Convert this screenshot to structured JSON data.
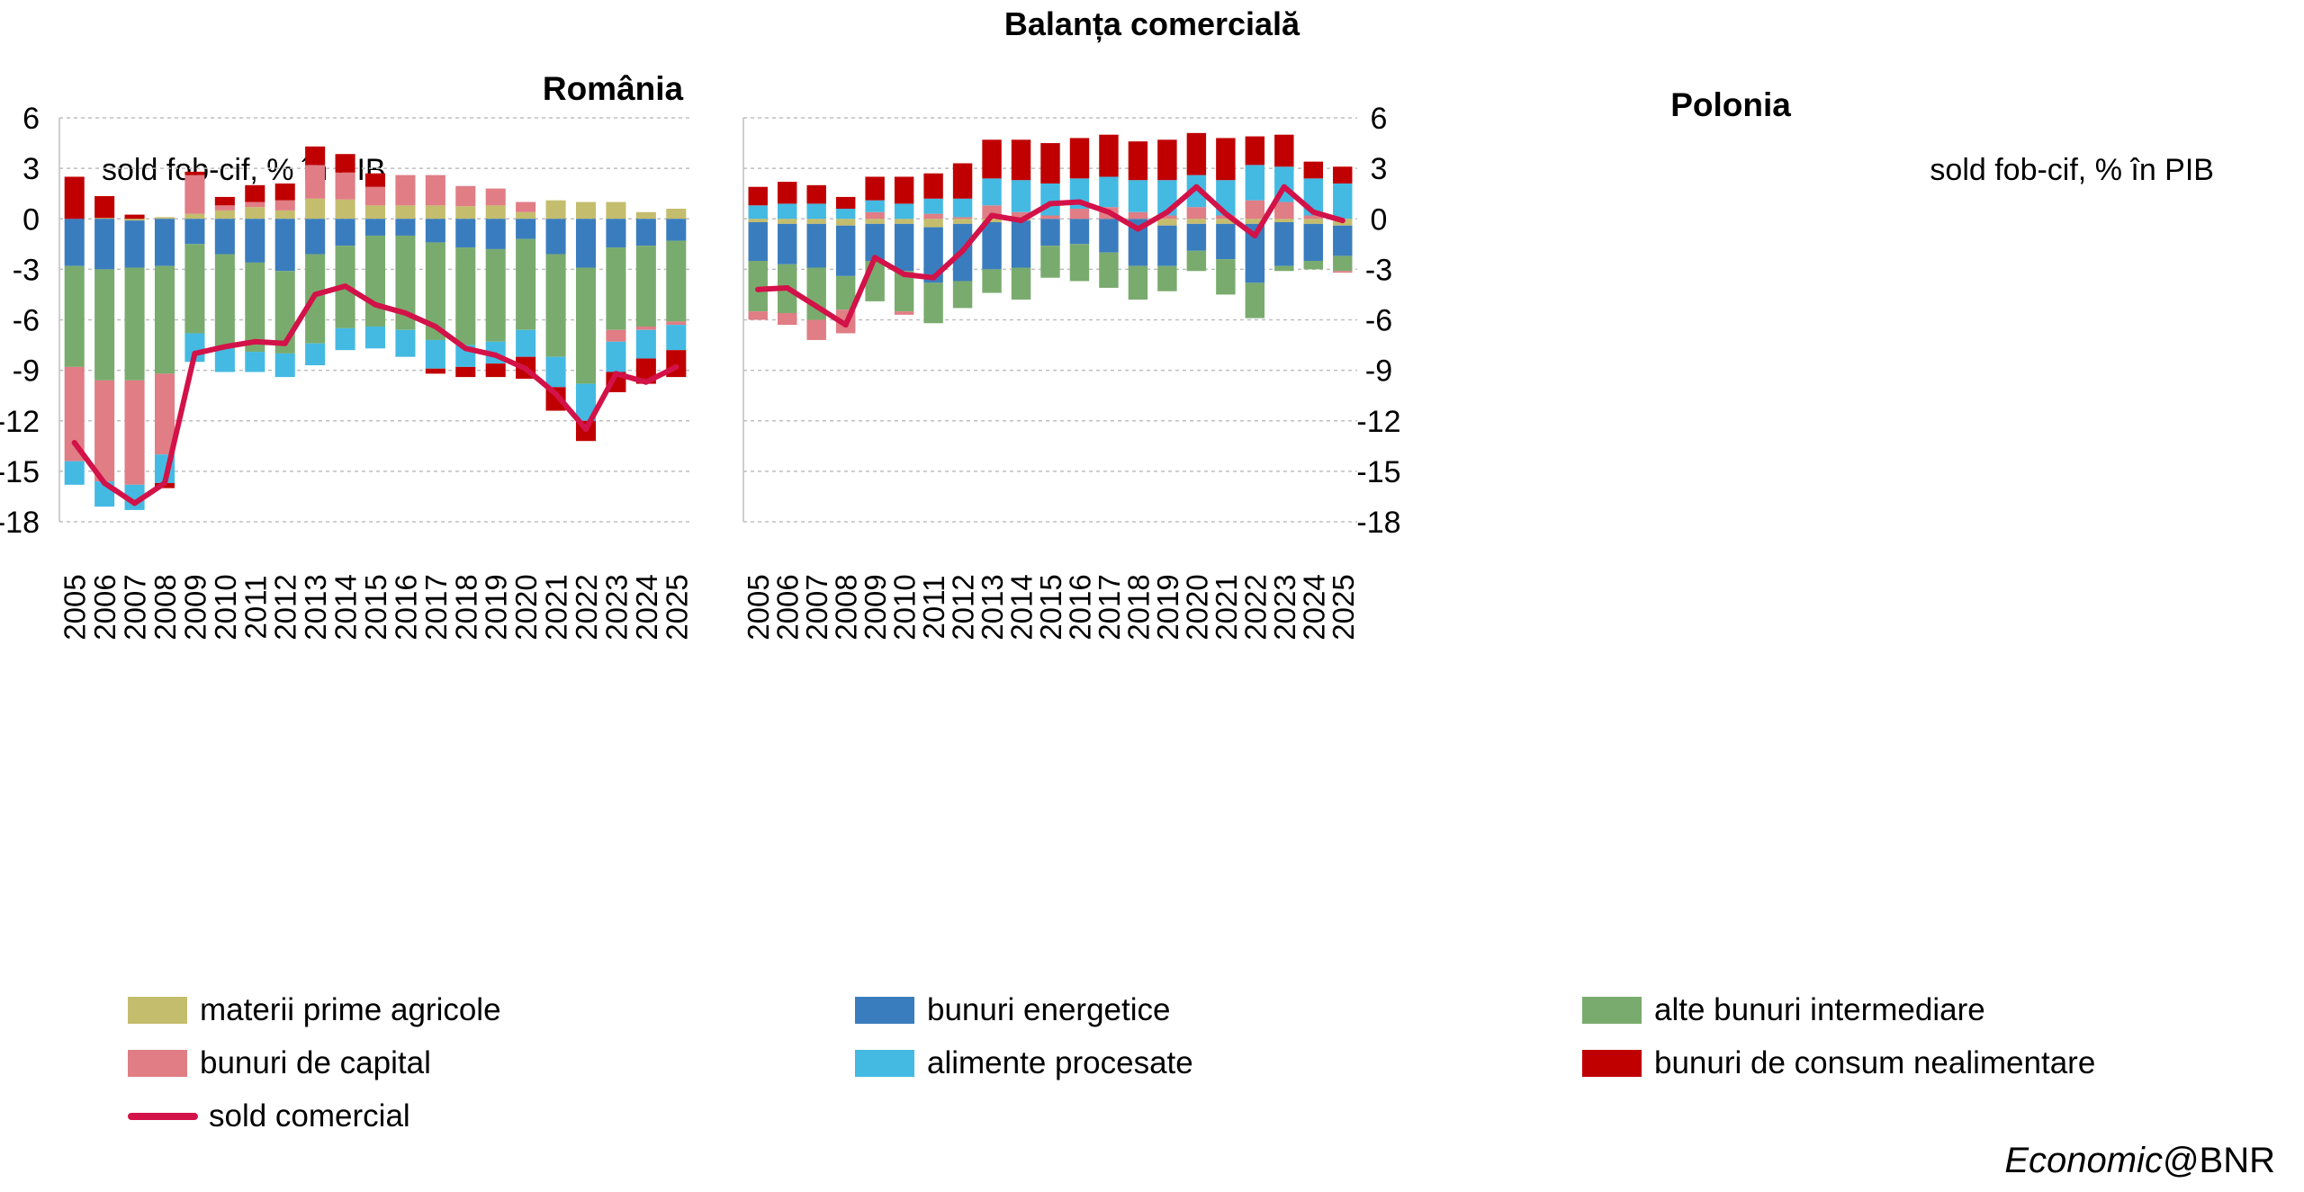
{
  "title": "Balanța comercială",
  "credit": {
    "italic": "Economic",
    "plain": "@BNR"
  },
  "colors": {
    "materii_prime_agricole": "#c4bd6d",
    "bunuri_energetice": "#3a7dbe",
    "alte_bunuri_intermediare": "#7aab6e",
    "bunuri_de_capital": "#e07d85",
    "alimente_procesate": "#44bae3",
    "bunuri_de_consum_nealimentare": "#c00000",
    "sold_comercial": "#d21248",
    "grid": "#bfbfbf"
  },
  "legend": [
    {
      "key": "materii_prime_agricole",
      "label": "materii prime agricole",
      "kind": "bar"
    },
    {
      "key": "bunuri_energetice",
      "label": "bunuri energetice",
      "kind": "bar"
    },
    {
      "key": "alte_bunuri_intermediare",
      "label": "alte bunuri intermediare",
      "kind": "bar"
    },
    {
      "key": "bunuri_de_capital",
      "label": "bunuri de capital",
      "kind": "bar"
    },
    {
      "key": "alimente_procesate",
      "label": "alimente procesate",
      "kind": "bar"
    },
    {
      "key": "bunuri_de_consum_nealimentare",
      "label": "bunuri de consum nealimentare",
      "kind": "bar"
    },
    {
      "key": "sold_comercial",
      "label": "sold comercial",
      "kind": "line"
    }
  ],
  "chart_data": [
    {
      "type": "bar",
      "stacked": true,
      "title": "România",
      "ylabel": "sold fob-cif, % în PIB",
      "y_axis_side": "left",
      "ylim": [
        -18,
        6
      ],
      "yticks": [
        6,
        3,
        0,
        -3,
        -6,
        -9,
        -12,
        -15,
        -18
      ],
      "grid": true,
      "categories": [
        "2005",
        "2006",
        "2007",
        "2008",
        "2009",
        "2010",
        "2011",
        "2012",
        "2013",
        "2014",
        "2015",
        "2016",
        "2017",
        "2018",
        "2019",
        "2020",
        "2021",
        "2022",
        "2023",
        "2024",
        "2025"
      ],
      "series": [
        {
          "key": "materii_prime_agricole",
          "name": "materii prime agricole",
          "values": [
            0.0,
            0.05,
            -0.1,
            0.1,
            0.3,
            0.5,
            0.7,
            0.5,
            1.2,
            1.15,
            0.8,
            0.8,
            0.8,
            0.75,
            0.8,
            0.4,
            1.1,
            1.0,
            1.0,
            0.4,
            0.6
          ]
        },
        {
          "key": "bunuri_energetice",
          "name": "bunuri energetice",
          "values": [
            -2.8,
            -3.0,
            -2.8,
            -2.8,
            -1.5,
            -2.1,
            -2.6,
            -3.1,
            -2.1,
            -1.6,
            -1.0,
            -1.0,
            -1.4,
            -1.7,
            -1.8,
            -1.2,
            -2.1,
            -2.9,
            -1.7,
            -1.6,
            -1.3
          ]
        },
        {
          "key": "alte_bunuri_intermediare",
          "name": "alte bunuri intermediare",
          "values": [
            -6.0,
            -6.6,
            -6.7,
            -6.4,
            -5.3,
            -5.6,
            -5.3,
            -4.9,
            -5.3,
            -4.9,
            -5.4,
            -5.6,
            -5.8,
            -5.8,
            -5.5,
            -5.4,
            -6.1,
            -6.9,
            -4.9,
            -4.8,
            -4.8
          ]
        },
        {
          "key": "bunuri_de_capital",
          "name": "bunuri de capital",
          "values": [
            -5.6,
            -6.0,
            -6.2,
            -4.8,
            2.3,
            0.3,
            0.3,
            0.6,
            2.0,
            1.6,
            1.1,
            1.8,
            1.8,
            1.2,
            1.0,
            0.6,
            0.0,
            0.0,
            -0.7,
            -0.2,
            -0.2
          ]
        },
        {
          "key": "alimente_procesate",
          "name": "alimente procesate",
          "values": [
            -1.4,
            -1.5,
            -1.5,
            -1.7,
            -1.7,
            -1.4,
            -1.2,
            -1.4,
            -1.3,
            -1.3,
            -1.3,
            -1.6,
            -1.7,
            -1.3,
            -1.3,
            -1.6,
            -1.8,
            -2.2,
            -1.8,
            -1.7,
            -1.5
          ]
        },
        {
          "key": "bunuri_de_consum_nealimentare",
          "name": "bunuri de consum nealimentare",
          "values": [
            2.5,
            1.3,
            0.25,
            -0.3,
            0.2,
            0.5,
            1.0,
            1.0,
            1.1,
            1.1,
            0.8,
            0.0,
            -0.3,
            -0.6,
            -0.8,
            -1.3,
            -1.4,
            -1.2,
            -1.2,
            -1.5,
            -1.6
          ]
        }
      ],
      "line": {
        "key": "sold_comercial",
        "name": "sold comercial",
        "values": [
          -13.3,
          -15.7,
          -16.9,
          -15.7,
          -8.0,
          -7.6,
          -7.3,
          -7.4,
          -4.5,
          -4.0,
          -5.1,
          -5.6,
          -6.4,
          -7.7,
          -8.1,
          -8.9,
          -10.4,
          -12.5,
          -9.2,
          -9.7,
          -8.8
        ]
      }
    },
    {
      "type": "bar",
      "stacked": true,
      "title": "Polonia",
      "ylabel": "sold fob-cif, % în PIB",
      "y_axis_side": "right",
      "ylim": [
        -18,
        6
      ],
      "yticks": [
        6,
        3,
        0,
        -3,
        -6,
        -9,
        -12,
        -15,
        -18
      ],
      "grid": true,
      "categories": [
        "2005",
        "2006",
        "2007",
        "2008",
        "2009",
        "2010",
        "2011",
        "2012",
        "2013",
        "2014",
        "2015",
        "2016",
        "2017",
        "2018",
        "2019",
        "2020",
        "2021",
        "2022",
        "2023",
        "2024",
        "2025"
      ],
      "series": [
        {
          "key": "materii_prime_agricole",
          "name": "materii prime agricole",
          "values": [
            -0.2,
            -0.3,
            -0.3,
            -0.4,
            -0.3,
            -0.3,
            -0.5,
            -0.3,
            -0.2,
            -0.1,
            0.0,
            0.0,
            0.0,
            0.0,
            -0.4,
            -0.3,
            -0.3,
            -0.3,
            -0.2,
            -0.3,
            -0.4
          ]
        },
        {
          "key": "bunuri_energetice",
          "name": "bunuri energetice",
          "values": [
            -2.3,
            -2.4,
            -2.6,
            -3.0,
            -2.2,
            -2.8,
            -3.3,
            -3.4,
            -2.8,
            -2.8,
            -1.6,
            -1.5,
            -2.0,
            -2.8,
            -2.4,
            -1.6,
            -2.1,
            -3.5,
            -2.6,
            -2.2,
            -1.8
          ]
        },
        {
          "key": "alte_bunuri_intermediare",
          "name": "alte bunuri intermediare",
          "values": [
            -3.0,
            -2.9,
            -3.1,
            -2.0,
            -2.4,
            -2.4,
            -2.4,
            -1.6,
            -1.4,
            -1.9,
            -1.9,
            -2.2,
            -2.1,
            -2.0,
            -1.5,
            -1.2,
            -2.1,
            -2.1,
            -0.3,
            -0.5,
            -0.9
          ]
        },
        {
          "key": "bunuri_de_capital",
          "name": "bunuri de capital",
          "values": [
            -0.5,
            -0.7,
            -1.2,
            -1.4,
            0.4,
            -0.2,
            0.3,
            0.1,
            0.8,
            0.4,
            0.2,
            0.6,
            0.7,
            0.4,
            0.2,
            0.7,
            0.2,
            1.1,
            1.0,
            0.2,
            -0.1
          ]
        },
        {
          "key": "alimente_procesate",
          "name": "alimente procesate",
          "values": [
            0.8,
            0.9,
            0.9,
            0.6,
            0.7,
            0.9,
            0.9,
            1.1,
            1.6,
            1.9,
            1.9,
            1.8,
            1.8,
            1.9,
            2.1,
            1.9,
            2.1,
            2.1,
            2.1,
            2.2,
            2.1
          ]
        },
        {
          "key": "bunuri_de_consum_nealimentare",
          "name": "bunuri de consum nealimentare",
          "values": [
            1.1,
            1.3,
            1.1,
            0.7,
            1.4,
            1.6,
            1.5,
            2.1,
            2.3,
            2.4,
            2.4,
            2.4,
            2.5,
            2.3,
            2.4,
            2.5,
            2.5,
            1.7,
            1.9,
            1.0,
            1.0
          ]
        }
      ],
      "line": {
        "key": "sold_comercial",
        "name": "sold comercial",
        "values": [
          -4.2,
          -4.1,
          -5.2,
          -6.3,
          -2.3,
          -3.3,
          -3.5,
          -1.9,
          0.2,
          -0.1,
          0.9,
          1.0,
          0.4,
          -0.6,
          0.4,
          1.9,
          0.3,
          -1.0,
          1.9,
          0.4,
          -0.1
        ]
      }
    }
  ]
}
